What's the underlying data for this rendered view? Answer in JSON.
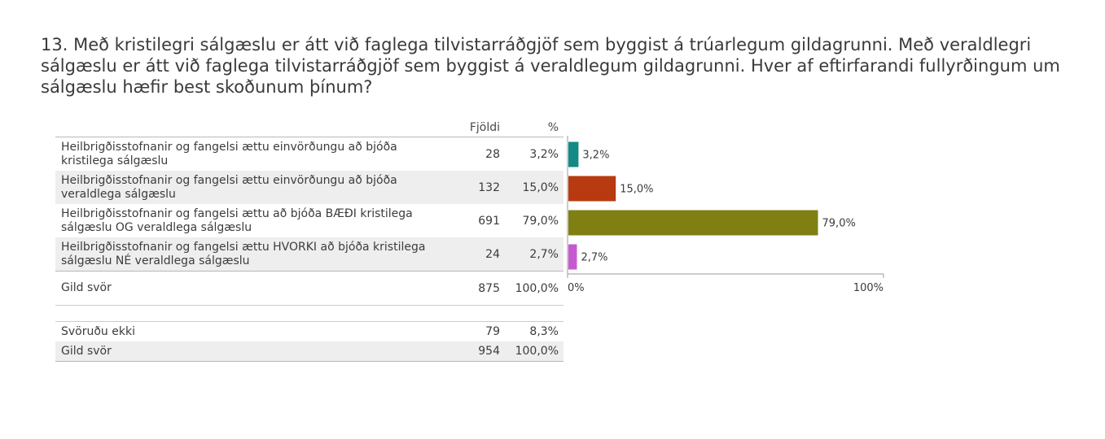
{
  "title": "13. Með kristilegri sálgæslu er átt við faglega tilvistarráðgjöf sem byggist  á trúarlegum gildagrunni. Með veraldlegri sálgæslu er átt við faglega tilvistarráðgjöf sem byggist á veraldlegum gildagrunni. Hver af eftirfarandi fullyrðingum um sálgæslu hæfir best skoðunum þínum?",
  "table": {
    "col_count": "Fjöldi",
    "col_pct": "%",
    "rows": [
      {
        "label_line1": "Heilbrigðisstofnanir og fangelsi ættu einvörðungu að bjóða",
        "label_line2": "kristilega sálgæslu",
        "count": "28",
        "pct": "3,2%"
      },
      {
        "label_line1": "Heilbrigðisstofnanir og fangelsi ættu einvörðungu að bjóða",
        "label_line2": "veraldlega sálgæslu",
        "count": "132",
        "pct": "15,0%"
      },
      {
        "label_line1": "Heilbrigðisstofnanir og fangelsi ættu að bjóða BÆÐI kristilega",
        "label_line2": "sálgæslu OG veraldlega sálgæslu",
        "count": "691",
        "pct": "79,0%"
      },
      {
        "label_line1": "Heilbrigðisstofnanir og fangelsi ættu HVORKI að bjóða kristilega",
        "label_line2": "sálgæslu NÉ veraldlega sálgæslu",
        "count": "24",
        "pct": "2,7%"
      }
    ],
    "valid": {
      "label": "Gild svör",
      "count": "875",
      "pct": "100,0%"
    },
    "no_answer": {
      "label": "Svöruðu ekki",
      "count": "79",
      "pct": "8,3%"
    },
    "total": {
      "label": "Gild svör",
      "count": "954",
      "pct": "100,0%"
    }
  },
  "chart_data": {
    "type": "bar",
    "orientation": "horizontal",
    "categories": [
      "Heilbrigðisstofnanir og fangelsi ættu einvörðungu að bjóða kristilega sálgæslu",
      "Heilbrigðisstofnanir og fangelsi ættu einvörðungu að bjóða veraldlega sálgæslu",
      "Heilbrigðisstofnanir og fangelsi ættu að bjóða BÆÐI kristilega sálgæslu OG veraldlega sálgæslu",
      "Heilbrigðisstofnanir og fangelsi ættu HVORKI að bjóða kristilega sálgæslu NÉ veraldlega sálgæslu"
    ],
    "values": [
      3.2,
      15.0,
      79.0,
      2.7
    ],
    "value_labels": [
      "3,2%",
      "15,0%",
      "79,0%",
      "2,7%"
    ],
    "colors": [
      "#138a84",
      "#b83a10",
      "#7f7f12",
      "#c55ad0"
    ],
    "xlim": [
      0,
      100
    ],
    "tick_labels": [
      "0%",
      "100%"
    ],
    "grid": false,
    "legend": "none"
  }
}
